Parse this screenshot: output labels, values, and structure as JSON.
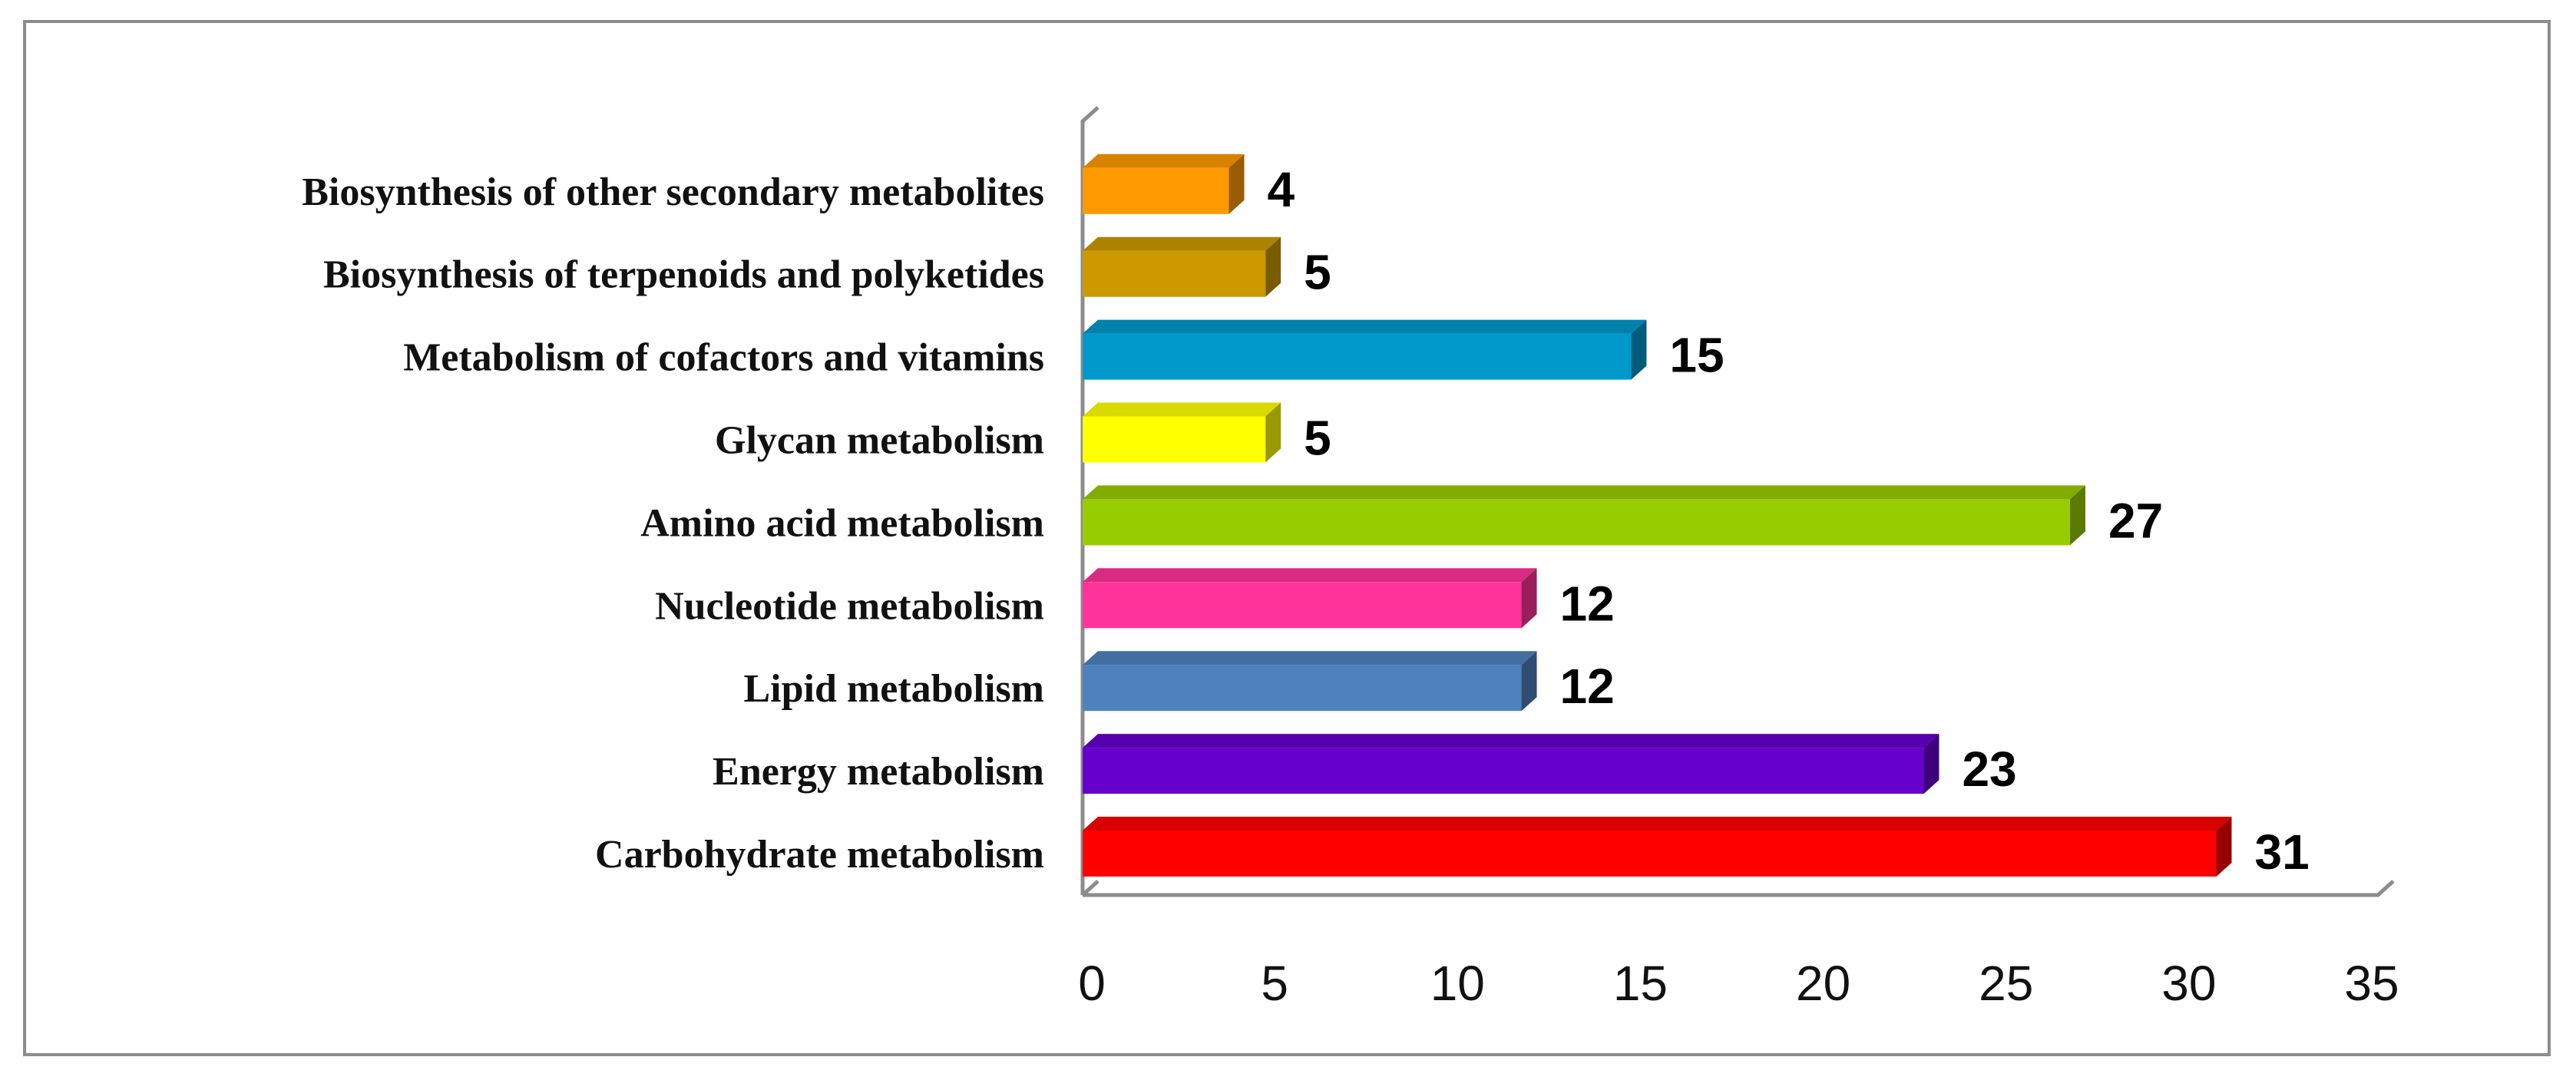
{
  "chart_data": {
    "type": "bar",
    "orientation": "horizontal",
    "style": "3d",
    "title": "",
    "xlabel": "",
    "ylabel": "",
    "xlim": [
      0,
      35
    ],
    "x_ticks": [
      0,
      5,
      10,
      15,
      20,
      25,
      30,
      35
    ],
    "grid": false,
    "legend": "none",
    "categories": [
      "Carbohydrate metabolism",
      "Energy metabolism",
      "Lipid metabolism",
      "Nucleotide metabolism",
      "Amino acid metabolism",
      "Glycan metabolism",
      "Metabolism of cofactors and vitamins",
      "Biosynthesis of terpenoids and polyketides",
      "Biosynthesis of other secondary metabolites"
    ],
    "values": [
      31,
      23,
      12,
      12,
      27,
      5,
      15,
      5,
      4
    ],
    "colors": [
      "#ff0000",
      "#6600cc",
      "#4f81bd",
      "#ff3399",
      "#99cc00",
      "#ffff00",
      "#0099cc",
      "#cc9900",
      "#ff9900"
    ]
  }
}
